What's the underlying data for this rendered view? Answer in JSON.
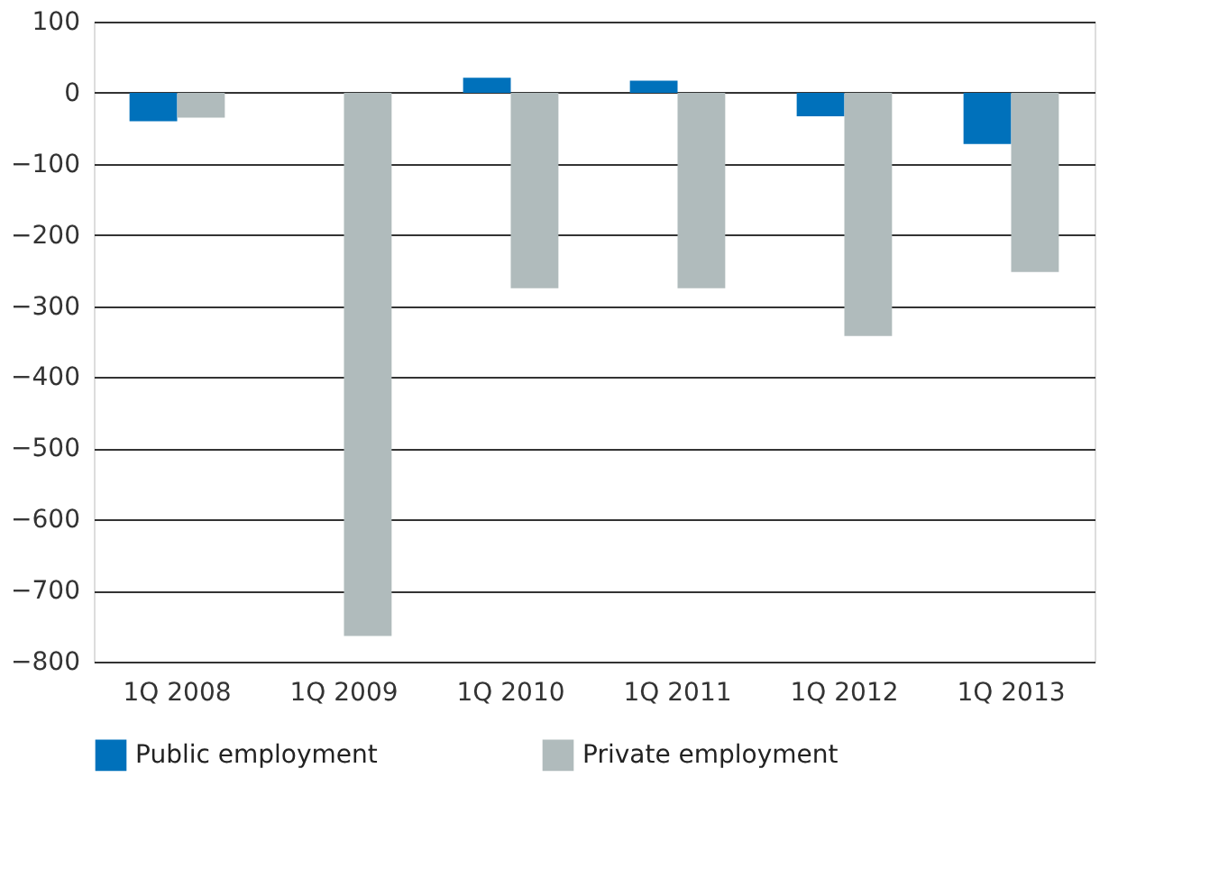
{
  "chart_data": {
    "type": "bar",
    "categories": [
      "1Q 2008",
      "1Q 2009",
      "1Q 2010",
      "1Q 2011",
      "1Q 2012",
      "1Q 2013"
    ],
    "series": [
      {
        "name": "Public employment",
        "color": "#0071bb",
        "values": [
          -40,
          0,
          21,
          17,
          -33,
          -72
        ]
      },
      {
        "name": "Private employment",
        "color": "#b0bbbc",
        "values": [
          -35,
          -764,
          -275,
          -275,
          -342,
          -252
        ]
      }
    ],
    "ylim": [
      -800,
      100
    ],
    "yticks": [
      -800,
      -700,
      -600,
      -500,
      -400,
      -300,
      -200,
      -100,
      0,
      100
    ],
    "grid": "y",
    "legend": "bottom"
  }
}
